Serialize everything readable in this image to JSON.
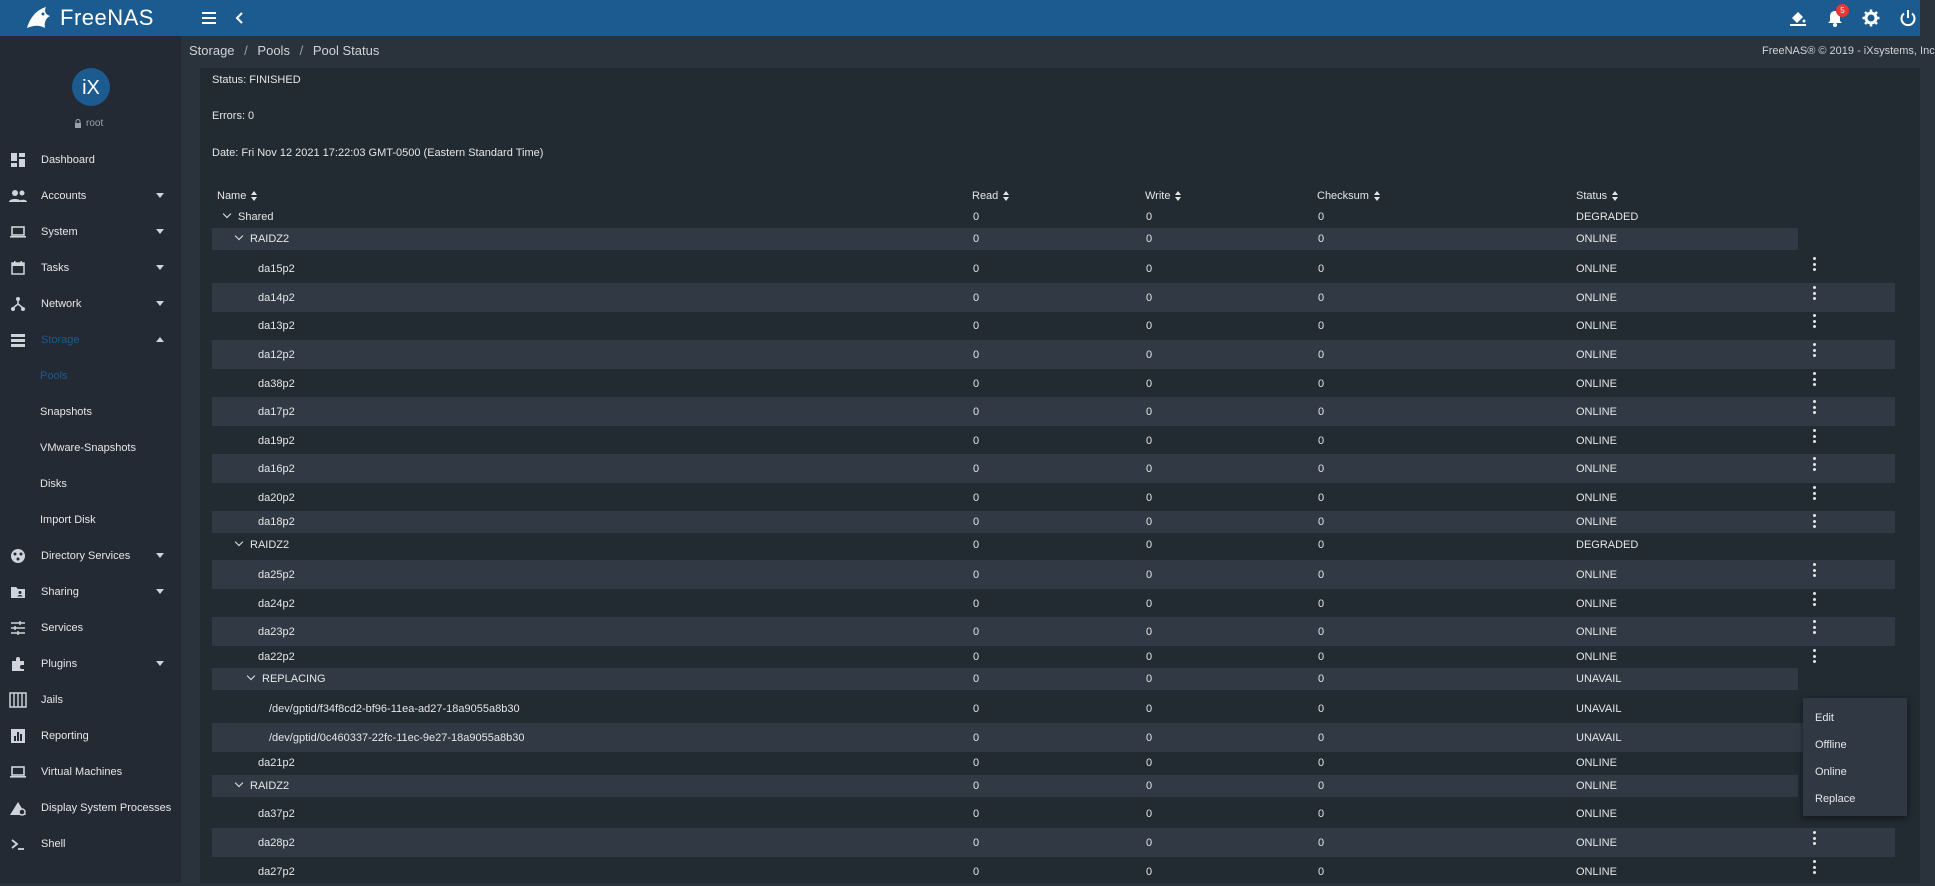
{
  "header": {
    "brand": "FreeNAS",
    "notification_count": "5"
  },
  "sidebar": {
    "user": "root",
    "items": [
      {
        "label": "Dashboard",
        "icon": "dashboard-icon"
      },
      {
        "label": "Accounts",
        "icon": "people-icon"
      },
      {
        "label": "System",
        "icon": "laptop-icon"
      },
      {
        "label": "Tasks",
        "icon": "calendar-icon"
      },
      {
        "label": "Network",
        "icon": "network-icon"
      },
      {
        "label": "Storage",
        "icon": "storage-icon"
      },
      {
        "label": "Directory Services",
        "icon": "directory-icon"
      },
      {
        "label": "Sharing",
        "icon": "folder-shared-icon"
      },
      {
        "label": "Services",
        "icon": "tune-icon"
      },
      {
        "label": "Plugins",
        "icon": "puzzle-icon"
      },
      {
        "label": "Jails",
        "icon": "jail-icon"
      },
      {
        "label": "Reporting",
        "icon": "chart-icon"
      },
      {
        "label": "Virtual Machines",
        "icon": "laptop-icon"
      },
      {
        "label": "Display System Processes",
        "icon": "processes-icon"
      },
      {
        "label": "Shell",
        "icon": "terminal-icon"
      }
    ],
    "storage_sub": [
      "Pools",
      "Snapshots",
      "VMware-Snapshots",
      "Disks",
      "Import Disk"
    ]
  },
  "breadcrumb": [
    "Storage",
    "Pools",
    "Pool Status"
  ],
  "copyright": "FreeNAS® © 2019 - iXsystems, Inc",
  "scrub": {
    "status": "Status: FINISHED",
    "errors": "Errors: 0",
    "date": "Date: Fri Nov 12 2021 17:22:03 GMT-0500 (Eastern Standard Time)"
  },
  "table": {
    "columns": [
      "Name",
      "Read",
      "Write",
      "Checksum",
      "Status"
    ],
    "rows": [
      {
        "name": "Shared",
        "level": 0,
        "toggle": true,
        "read": "0",
        "write": "0",
        "checksum": "0",
        "status": "DEGRADED",
        "menu": false
      },
      {
        "name": "RAIDZ2",
        "level": 1,
        "toggle": true,
        "read": "0",
        "write": "0",
        "checksum": "0",
        "status": "ONLINE",
        "menu": false
      },
      {
        "name": "da15p2",
        "level": 2,
        "toggle": false,
        "read": "0",
        "write": "0",
        "checksum": "0",
        "status": "ONLINE",
        "menu": true
      },
      {
        "name": "da14p2",
        "level": 2,
        "toggle": false,
        "read": "0",
        "write": "0",
        "checksum": "0",
        "status": "ONLINE",
        "menu": true
      },
      {
        "name": "da13p2",
        "level": 2,
        "toggle": false,
        "read": "0",
        "write": "0",
        "checksum": "0",
        "status": "ONLINE",
        "menu": true
      },
      {
        "name": "da12p2",
        "level": 2,
        "toggle": false,
        "read": "0",
        "write": "0",
        "checksum": "0",
        "status": "ONLINE",
        "menu": true
      },
      {
        "name": "da38p2",
        "level": 2,
        "toggle": false,
        "read": "0",
        "write": "0",
        "checksum": "0",
        "status": "ONLINE",
        "menu": true
      },
      {
        "name": "da17p2",
        "level": 2,
        "toggle": false,
        "read": "0",
        "write": "0",
        "checksum": "0",
        "status": "ONLINE",
        "menu": true
      },
      {
        "name": "da19p2",
        "level": 2,
        "toggle": false,
        "read": "0",
        "write": "0",
        "checksum": "0",
        "status": "ONLINE",
        "menu": true
      },
      {
        "name": "da16p2",
        "level": 2,
        "toggle": false,
        "read": "0",
        "write": "0",
        "checksum": "0",
        "status": "ONLINE",
        "menu": true
      },
      {
        "name": "da20p2",
        "level": 2,
        "toggle": false,
        "read": "0",
        "write": "0",
        "checksum": "0",
        "status": "ONLINE",
        "menu": true
      },
      {
        "name": "da18p2",
        "level": 2,
        "toggle": false,
        "read": "0",
        "write": "0",
        "checksum": "0",
        "status": "ONLINE",
        "menu": true
      },
      {
        "name": "RAIDZ2",
        "level": 1,
        "toggle": true,
        "read": "0",
        "write": "0",
        "checksum": "0",
        "status": "DEGRADED",
        "menu": false
      },
      {
        "name": "da25p2",
        "level": 2,
        "toggle": false,
        "read": "0",
        "write": "0",
        "checksum": "0",
        "status": "ONLINE",
        "menu": true
      },
      {
        "name": "da24p2",
        "level": 2,
        "toggle": false,
        "read": "0",
        "write": "0",
        "checksum": "0",
        "status": "ONLINE",
        "menu": true
      },
      {
        "name": "da23p2",
        "level": 2,
        "toggle": false,
        "read": "0",
        "write": "0",
        "checksum": "0",
        "status": "ONLINE",
        "menu": true
      },
      {
        "name": "da22p2",
        "level": 2,
        "toggle": false,
        "read": "0",
        "write": "0",
        "checksum": "0",
        "status": "ONLINE",
        "menu": true
      },
      {
        "name": "REPLACING",
        "level": 2,
        "toggle": true,
        "read": "0",
        "write": "0",
        "checksum": "0",
        "status": "UNAVAIL",
        "menu": false
      },
      {
        "name": "/dev/gptid/f34f8cd2-bf96-11ea-ad27-18a9055a8b30",
        "level": 3,
        "toggle": false,
        "read": "0",
        "write": "0",
        "checksum": "0",
        "status": "UNAVAIL",
        "menu": false
      },
      {
        "name": "/dev/gptid/0c460337-22fc-11ec-9e27-18a9055a8b30",
        "level": 3,
        "toggle": false,
        "read": "0",
        "write": "0",
        "checksum": "0",
        "status": "UNAVAIL",
        "menu": false
      },
      {
        "name": "da21p2",
        "level": 2,
        "toggle": false,
        "read": "0",
        "write": "0",
        "checksum": "0",
        "status": "ONLINE",
        "menu": false
      },
      {
        "name": "RAIDZ2",
        "level": 1,
        "toggle": true,
        "read": "0",
        "write": "0",
        "checksum": "0",
        "status": "ONLINE",
        "menu": false
      },
      {
        "name": "da37p2",
        "level": 2,
        "toggle": false,
        "read": "0",
        "write": "0",
        "checksum": "0",
        "status": "ONLINE",
        "menu": false
      },
      {
        "name": "da28p2",
        "level": 2,
        "toggle": false,
        "read": "0",
        "write": "0",
        "checksum": "0",
        "status": "ONLINE",
        "menu": true
      },
      {
        "name": "da27p2",
        "level": 2,
        "toggle": false,
        "read": "0",
        "write": "0",
        "checksum": "0",
        "status": "ONLINE",
        "menu": true
      }
    ]
  },
  "context_menu": [
    "Edit",
    "Offline",
    "Online",
    "Replace"
  ]
}
